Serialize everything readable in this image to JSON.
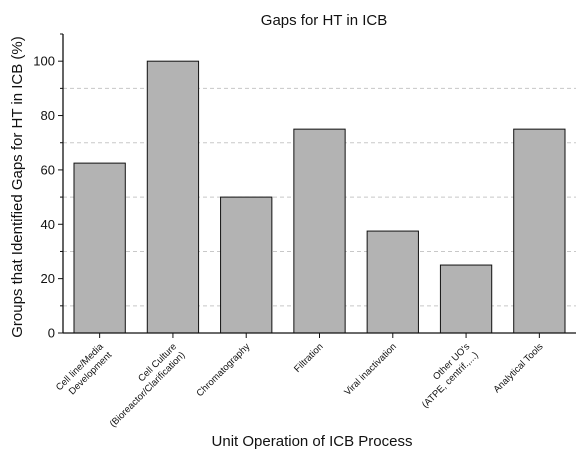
{
  "chart_data": {
    "type": "bar",
    "title": "Gaps for HT in ICB",
    "xlabel": "Unit Operation of ICB Process",
    "ylabel": "Groups that Identified Gaps for HT in ICB (%)",
    "categories": [
      [
        "Cell line/Media",
        "Development"
      ],
      [
        "Cell Culture",
        "(Bioreactor/Clarification)"
      ],
      [
        "Chromatography"
      ],
      [
        "Filtration"
      ],
      [
        "Viral inactivation"
      ],
      [
        "Other UO's",
        "(ATPE, centrif.,...)"
      ],
      [
        "Analytical Tools"
      ]
    ],
    "values": [
      62.5,
      100,
      50,
      75,
      37.5,
      25,
      75
    ],
    "ylim": [
      0,
      110
    ],
    "yticks": [
      0,
      20,
      40,
      60,
      80,
      100
    ],
    "grid": "horizontal dashed at 10, 30, 50, 70, 90",
    "bar_color": "#b3b3b3",
    "edge_color": "#111111"
  }
}
